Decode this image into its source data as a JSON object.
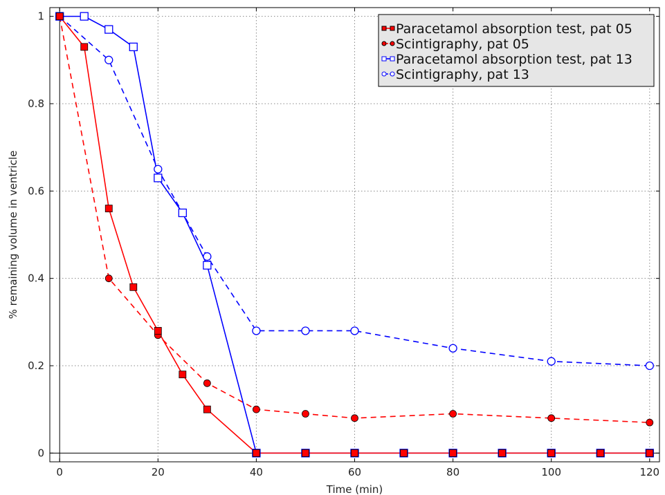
{
  "chart_data": {
    "type": "line",
    "title": "",
    "xlabel": "Time (min)",
    "ylabel": "% remaining volume in ventricle",
    "xlim": [
      -2,
      122
    ],
    "ylim": [
      -0.02,
      1.02
    ],
    "x_ticks": [
      0,
      20,
      40,
      60,
      80,
      100,
      120
    ],
    "y_ticks": [
      0,
      0.2,
      0.4,
      0.6,
      0.8,
      1
    ],
    "grid": true,
    "legend_position": "top-right",
    "series": [
      {
        "name": "Paracetamol absorption test, pat 05",
        "color": "#ff0000",
        "line_style": "solid",
        "marker": "square-filled",
        "x": [
          0,
          5,
          10,
          15,
          20,
          25,
          30,
          40,
          50,
          60,
          70,
          80,
          90,
          100,
          110,
          120
        ],
        "y": [
          1.0,
          0.93,
          0.56,
          0.38,
          0.28,
          0.18,
          0.1,
          0,
          0,
          0,
          0,
          0,
          0,
          0,
          0,
          0
        ]
      },
      {
        "name": "Scintigraphy, pat 05",
        "color": "#ff0000",
        "line_style": "dashed",
        "marker": "circle-filled",
        "x": [
          0,
          10,
          20,
          30,
          40,
          50,
          60,
          80,
          100,
          120
        ],
        "y": [
          1.0,
          0.4,
          0.27,
          0.16,
          0.1,
          0.09,
          0.08,
          0.09,
          0.08,
          0.07
        ]
      },
      {
        "name": "Paracetamol absorption test, pat 13",
        "color": "#0000ff",
        "line_style": "solid",
        "marker": "square-open",
        "x": [
          0,
          5,
          10,
          15,
          20,
          25,
          30,
          40,
          50,
          60,
          70,
          80,
          90,
          100,
          110,
          120
        ],
        "y": [
          1.0,
          1.0,
          0.97,
          0.93,
          0.63,
          0.55,
          0.43,
          0,
          0,
          0,
          0,
          0,
          0,
          0,
          0,
          0
        ]
      },
      {
        "name": "Scintigraphy, pat 13",
        "color": "#0000ff",
        "line_style": "dashed",
        "marker": "circle-open",
        "x": [
          0,
          10,
          20,
          30,
          40,
          50,
          60,
          80,
          100,
          120
        ],
        "y": [
          1.0,
          0.9,
          0.65,
          0.45,
          0.28,
          0.28,
          0.28,
          0.24,
          0.21,
          0.2
        ]
      }
    ]
  }
}
